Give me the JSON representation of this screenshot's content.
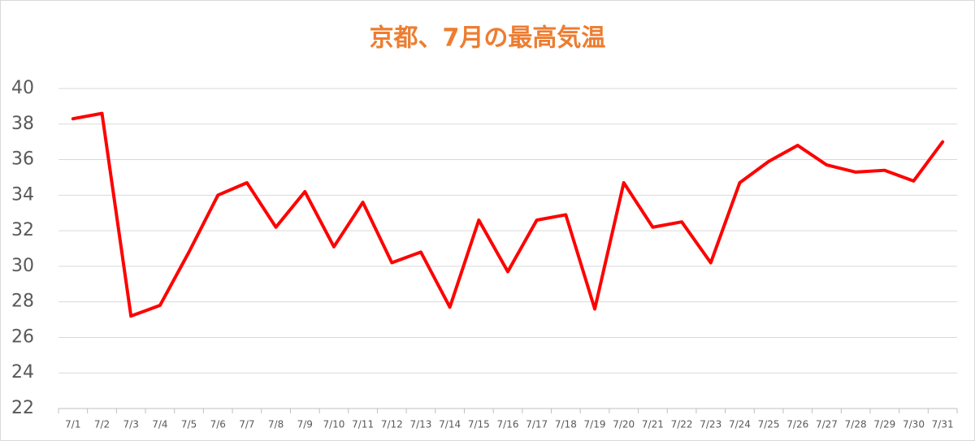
{
  "chart_data": {
    "type": "line",
    "title": "京都、7月の最高気温",
    "categories": [
      "7/1",
      "7/2",
      "7/3",
      "7/4",
      "7/5",
      "7/6",
      "7/7",
      "7/8",
      "7/9",
      "7/10",
      "7/11",
      "7/12",
      "7/13",
      "7/14",
      "7/15",
      "7/16",
      "7/17",
      "7/18",
      "7/19",
      "7/20",
      "7/21",
      "7/22",
      "7/23",
      "7/24",
      "7/25",
      "7/26",
      "7/27",
      "7/28",
      "7/29",
      "7/30",
      "7/31"
    ],
    "values": [
      38.3,
      38.6,
      27.2,
      27.8,
      30.8,
      34.0,
      34.7,
      32.2,
      34.2,
      31.1,
      33.6,
      30.2,
      30.8,
      27.7,
      32.6,
      29.7,
      32.6,
      32.9,
      27.6,
      34.7,
      32.2,
      32.5,
      30.2,
      34.7,
      35.9,
      36.8,
      35.7,
      35.3,
      35.4,
      34.8,
      37.0
    ],
    "color": "#ff0000",
    "ylim": [
      22,
      40
    ],
    "yticks": [
      22,
      24,
      26,
      28,
      30,
      32,
      34,
      36,
      38,
      40
    ],
    "grid": true
  }
}
